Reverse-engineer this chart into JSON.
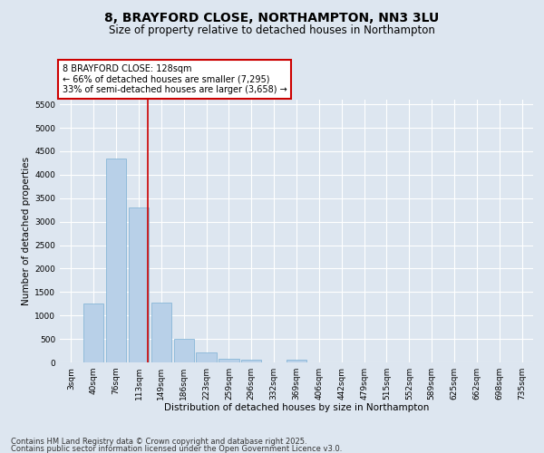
{
  "title_line1": "8, BRAYFORD CLOSE, NORTHAMPTON, NN3 3LU",
  "title_line2": "Size of property relative to detached houses in Northampton",
  "xlabel": "Distribution of detached houses by size in Northampton",
  "ylabel": "Number of detached properties",
  "categories": [
    "3sqm",
    "40sqm",
    "76sqm",
    "113sqm",
    "149sqm",
    "186sqm",
    "223sqm",
    "259sqm",
    "296sqm",
    "332sqm",
    "369sqm",
    "406sqm",
    "442sqm",
    "479sqm",
    "515sqm",
    "552sqm",
    "589sqm",
    "625sqm",
    "662sqm",
    "698sqm",
    "735sqm"
  ],
  "values": [
    0,
    1250,
    4350,
    3300,
    1270,
    500,
    210,
    85,
    65,
    0,
    65,
    0,
    0,
    0,
    0,
    0,
    0,
    0,
    0,
    0,
    0
  ],
  "bar_color": "#b8d0e8",
  "bar_edge_color": "#7aafd4",
  "vline_color": "#cc0000",
  "annotation_text": "8 BRAYFORD CLOSE: 128sqm\n← 66% of detached houses are smaller (7,295)\n33% of semi-detached houses are larger (3,658) →",
  "annotation_box_edge_color": "#cc0000",
  "ylim_max": 5600,
  "yticks": [
    0,
    500,
    1000,
    1500,
    2000,
    2500,
    3000,
    3500,
    4000,
    4500,
    5000,
    5500
  ],
  "bg_color": "#dde6f0",
  "plot_bg_color": "#dde6f0",
  "grid_color": "#ffffff",
  "footer_line1": "Contains HM Land Registry data © Crown copyright and database right 2025.",
  "footer_line2": "Contains public sector information licensed under the Open Government Licence v3.0.",
  "title_fontsize": 10,
  "subtitle_fontsize": 8.5,
  "axis_label_fontsize": 7.5,
  "tick_fontsize": 6.5,
  "annotation_fontsize": 7,
  "footer_fontsize": 6
}
